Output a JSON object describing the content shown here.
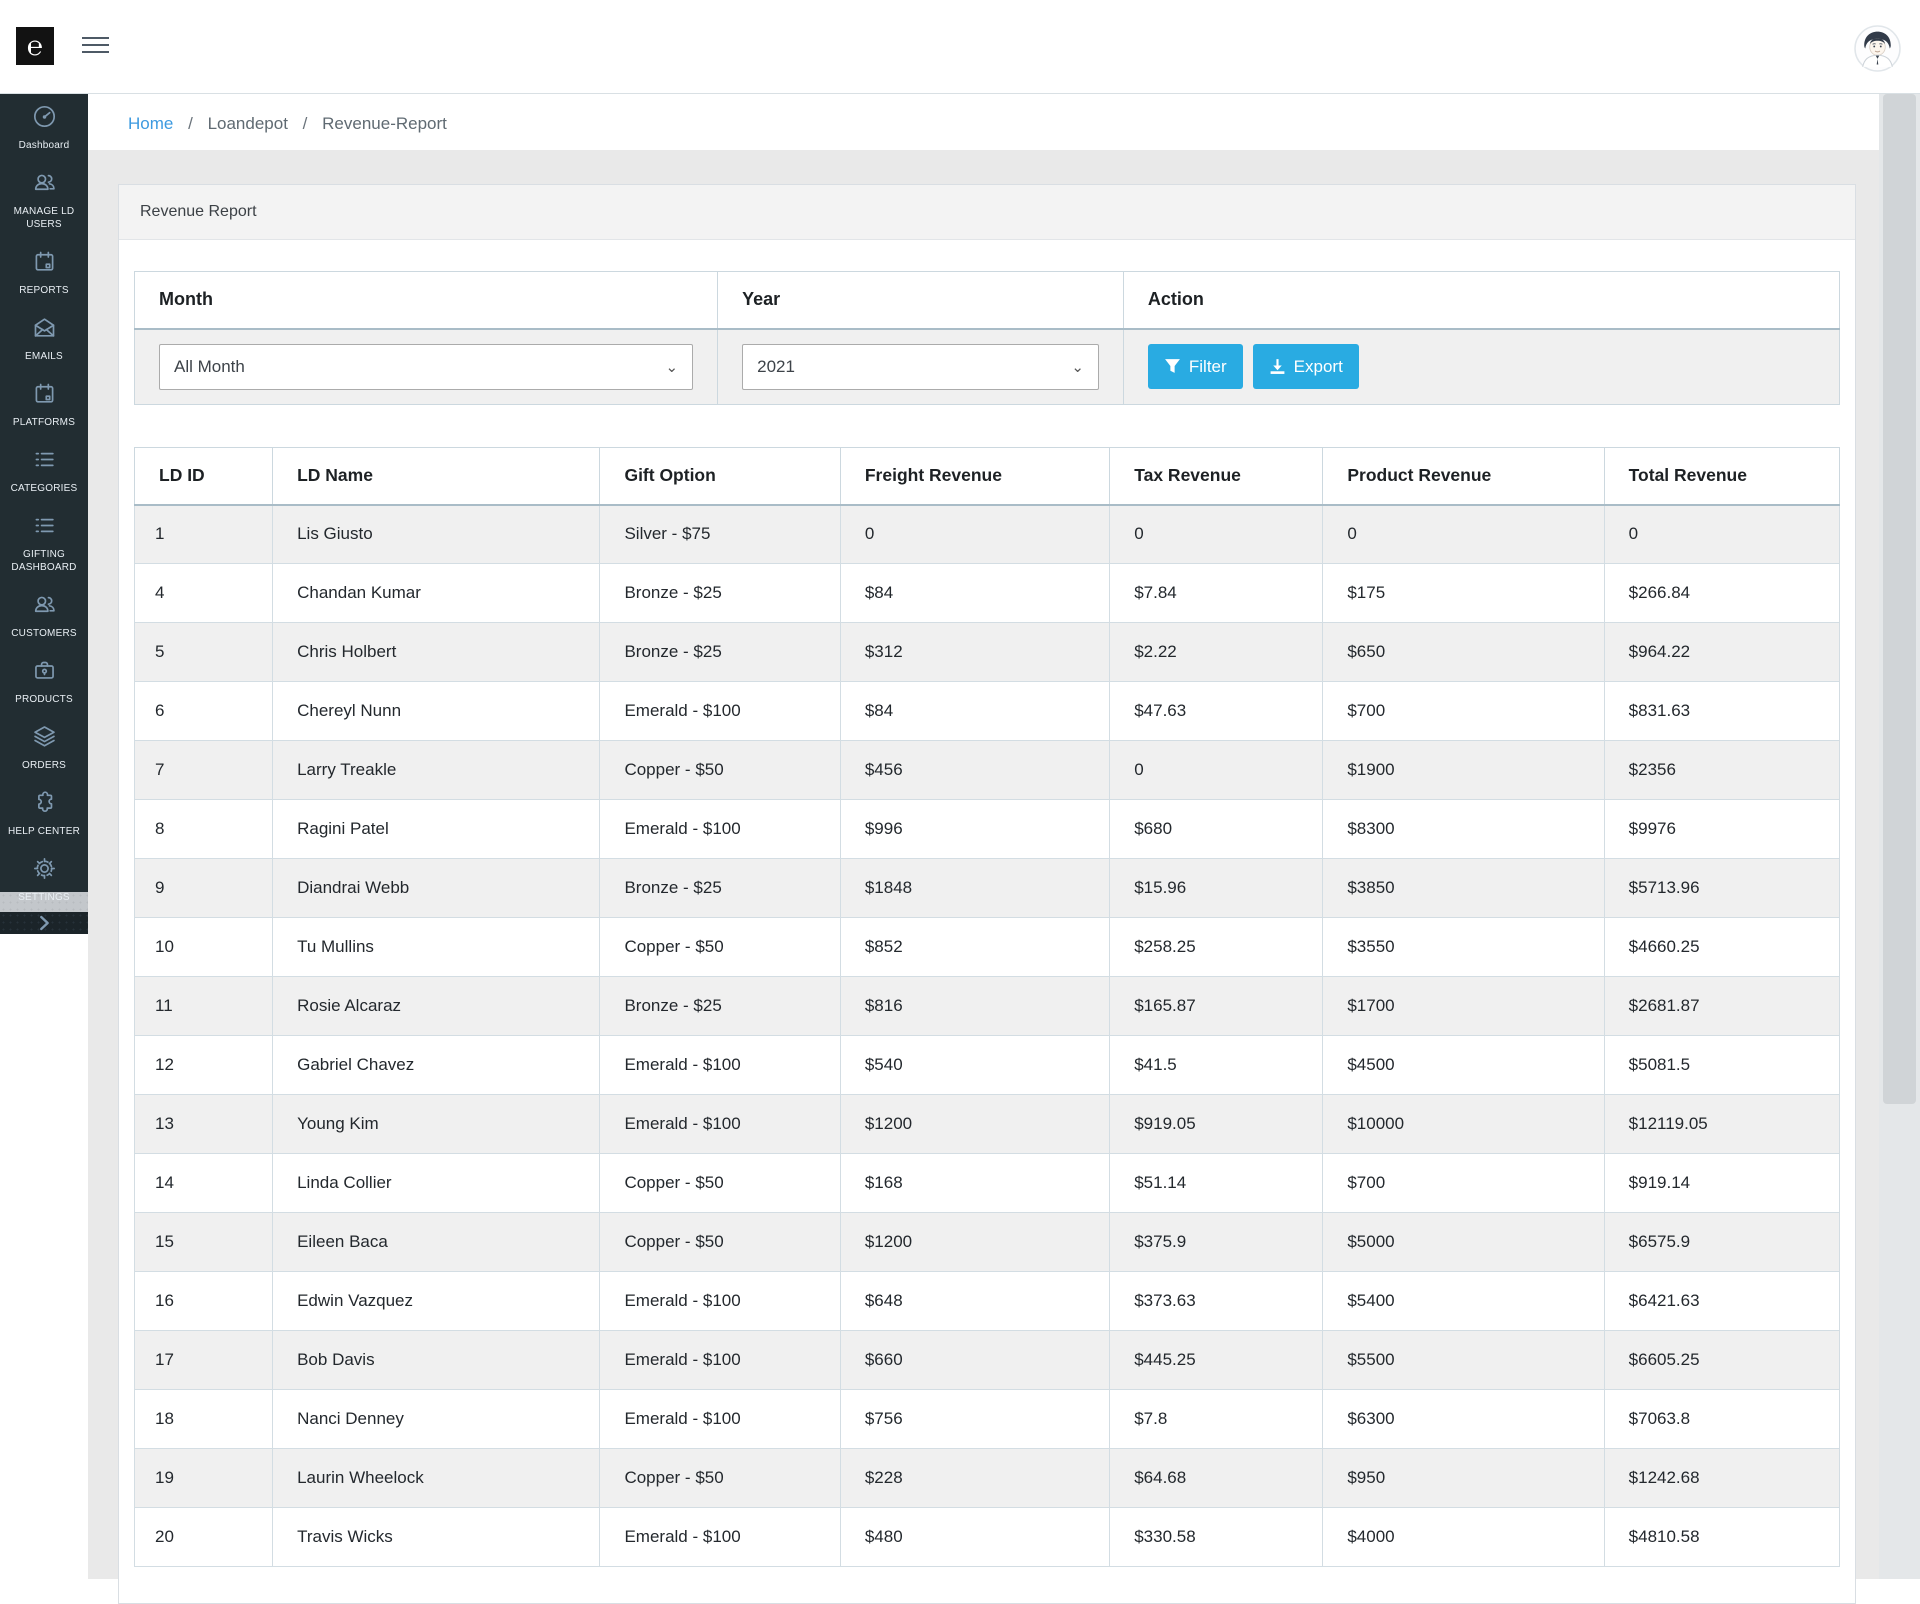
{
  "header": {
    "logo_glyph": "℮"
  },
  "breadcrumb": {
    "separator": "/",
    "items": [
      "Home",
      "Loandepot",
      "Revenue-Report"
    ]
  },
  "sidebar": {
    "items": [
      {
        "label": "Dashboard",
        "icon": "speedometer-icon"
      },
      {
        "label": "MANAGE LD USERS",
        "icon": "users-icon"
      },
      {
        "label": "REPORTS",
        "icon": "calendar-icon"
      },
      {
        "label": "EMAILS",
        "icon": "envelope-icon"
      },
      {
        "label": "PLATFORMS",
        "icon": "calendar-icon"
      },
      {
        "label": "CATEGORIES",
        "icon": "list-icon"
      },
      {
        "label": "GIFTING DASHBOARD",
        "icon": "list-icon"
      },
      {
        "label": "CUSTOMERS",
        "icon": "users-icon"
      },
      {
        "label": "PRODUCTS",
        "icon": "briefcase-icon"
      },
      {
        "label": "ORDERS",
        "icon": "layers-icon"
      },
      {
        "label": "HELP CENTER",
        "icon": "puzzle-icon"
      },
      {
        "label": "SETTINGS",
        "icon": "gear-icon"
      }
    ]
  },
  "card": {
    "title": "Revenue Report"
  },
  "filters": {
    "month_label": "Month",
    "year_label": "Year",
    "action_label": "Action",
    "month_value": "All Month",
    "year_value": "2021",
    "filter_button": "Filter",
    "export_button": "Export"
  },
  "table": {
    "columns": [
      "LD ID",
      "LD Name",
      "Gift Option",
      "Freight Revenue",
      "Tax Revenue",
      "Product Revenue",
      "Total Revenue"
    ],
    "rows": [
      [
        "1",
        "Lis Giusto",
        "Silver - $75",
        "0",
        "0",
        "0",
        "0"
      ],
      [
        "4",
        "Chandan Kumar",
        "Bronze - $25",
        "$84",
        "$7.84",
        "$175",
        "$266.84"
      ],
      [
        "5",
        "Chris Holbert",
        "Bronze - $25",
        "$312",
        "$2.22",
        "$650",
        "$964.22"
      ],
      [
        "6",
        "Chereyl Nunn",
        "Emerald - $100",
        "$84",
        "$47.63",
        "$700",
        "$831.63"
      ],
      [
        "7",
        "Larry Treakle",
        "Copper - $50",
        "$456",
        "0",
        "$1900",
        "$2356"
      ],
      [
        "8",
        "Ragini Patel",
        "Emerald - $100",
        "$996",
        "$680",
        "$8300",
        "$9976"
      ],
      [
        "9",
        "Diandrai Webb",
        "Bronze - $25",
        "$1848",
        "$15.96",
        "$3850",
        "$5713.96"
      ],
      [
        "10",
        "Tu Mullins",
        "Copper - $50",
        "$852",
        "$258.25",
        "$3550",
        "$4660.25"
      ],
      [
        "11",
        "Rosie Alcaraz",
        "Bronze - $25",
        "$816",
        "$165.87",
        "$1700",
        "$2681.87"
      ],
      [
        "12",
        "Gabriel Chavez",
        "Emerald - $100",
        "$540",
        "$41.5",
        "$4500",
        "$5081.5"
      ],
      [
        "13",
        "Young Kim",
        "Emerald - $100",
        "$1200",
        "$919.05",
        "$10000",
        "$12119.05"
      ],
      [
        "14",
        "Linda Collier",
        "Copper - $50",
        "$168",
        "$51.14",
        "$700",
        "$919.14"
      ],
      [
        "15",
        "Eileen Baca",
        "Copper - $50",
        "$1200",
        "$375.9",
        "$5000",
        "$6575.9"
      ],
      [
        "16",
        "Edwin Vazquez",
        "Emerald - $100",
        "$648",
        "$373.63",
        "$5400",
        "$6421.63"
      ],
      [
        "17",
        "Bob Davis",
        "Emerald - $100",
        "$660",
        "$445.25",
        "$5500",
        "$6605.25"
      ],
      [
        "18",
        "Nanci Denney",
        "Emerald - $100",
        "$756",
        "$7.8",
        "$6300",
        "$7063.8"
      ],
      [
        "19",
        "Laurin Wheelock",
        "Copper - $50",
        "$228",
        "$64.68",
        "$950",
        "$1242.68"
      ],
      [
        "20",
        "Travis Wicks",
        "Emerald - $100",
        "$480",
        "$330.58",
        "$4000",
        "$4810.58"
      ]
    ]
  },
  "colors": {
    "accent": "#29abe2",
    "sidebar_bg": "#222d32",
    "link_blue": "#3d9ae0",
    "stripe": "#f0f0f0"
  }
}
